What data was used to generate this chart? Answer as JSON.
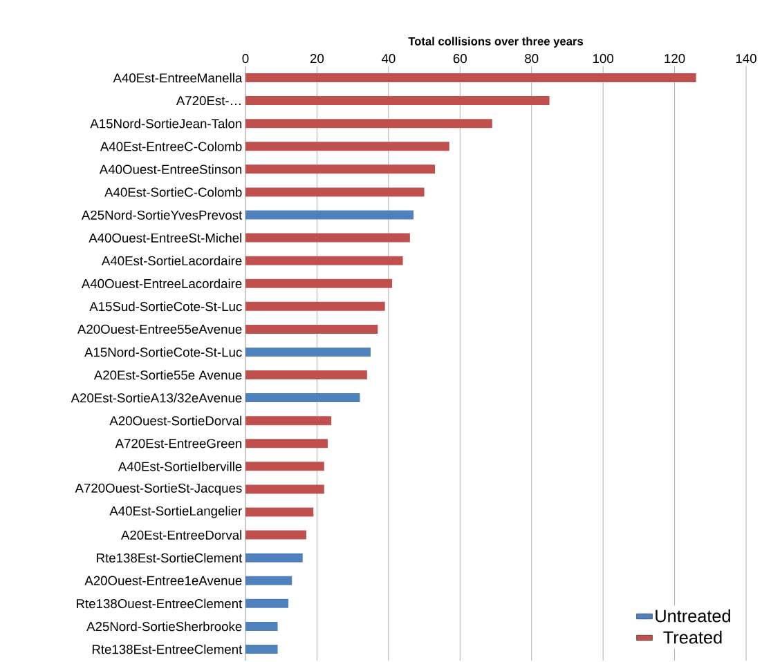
{
  "chart_data": {
    "type": "bar",
    "orientation": "horizontal",
    "xlabel": "**Total collisions over three years**",
    "categories": [
      "A40Est-EntreeManella",
      "A720Est-…",
      "A15Nord-SortieJean-Talon",
      "A40Est-EntreeC-Colomb",
      "A40Ouest-EntreeStinson",
      "A40Est-SortieC-Colomb",
      "A25Nord-SortieYvesPrevost",
      "A40Ouest-EntreeSt-Michel",
      "A40Est-SortieLacordaire",
      "A40Ouest-EntreeLacordaire",
      "A15Sud-SortieCote-St-Luc",
      "A20Ouest-Entree55eAvenue",
      "A15Nord-SortieCote-St-Luc",
      "A20Est-Sortie55e Avenue",
      "A20Est-SortieA13/32eAvenue",
      "A20Ouest-SortieDorval",
      "A720Est-EntreeGreen",
      "A40Est-SortieIberville",
      "A720Ouest-SortieSt-Jacques",
      "A40Est-SortieLangelier",
      "A20Est-EntreeDorval",
      "Rte138Est-SortieClement",
      "A20Ouest-Entree1eAvenue",
      "Rte138Ouest-EntreeClement",
      "A25Nord-SortieSherbrooke",
      "Rte138Est-EntreeClement"
    ],
    "series": [
      {
        "name": "Untreated",
        "color": "#4f81bd",
        "values": [
          null,
          null,
          null,
          null,
          null,
          null,
          47,
          null,
          null,
          null,
          null,
          null,
          35,
          null,
          32,
          null,
          null,
          null,
          null,
          null,
          null,
          16,
          13,
          12,
          9,
          9
        ]
      },
      {
        "name": "Treated",
        "color": "#c0504d",
        "values": [
          126,
          85,
          69,
          57,
          53,
          50,
          null,
          46,
          44,
          41,
          39,
          37,
          null,
          34,
          null,
          24,
          23,
          22,
          22,
          19,
          17,
          null,
          null,
          null,
          null,
          null
        ]
      }
    ],
    "xlim": [
      0,
      140
    ],
    "xticks": [
      0,
      20,
      40,
      60,
      80,
      100,
      120,
      140
    ],
    "grid": "x",
    "legend": "bottom right"
  }
}
